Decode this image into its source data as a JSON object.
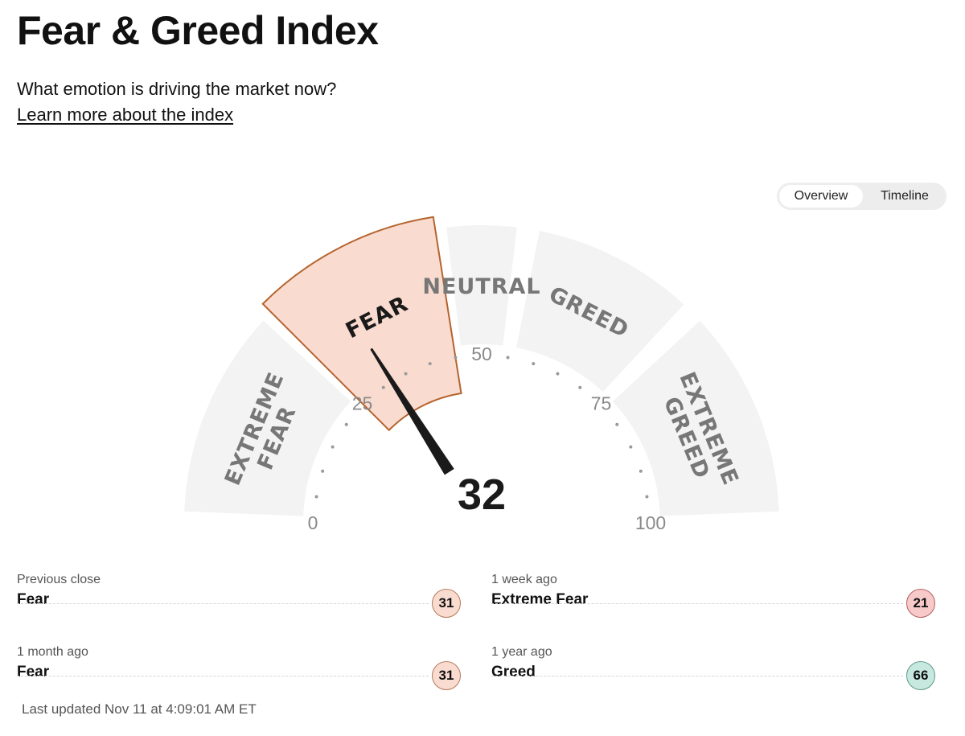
{
  "header": {
    "title": "Fear & Greed Index",
    "subtitle": "What emotion is driving the market now?",
    "learn_more": "Learn more about the index"
  },
  "view_toggle": {
    "overview": "Overview",
    "timeline": "Timeline",
    "selected": "overview"
  },
  "gauge": {
    "score": 32,
    "score_label": "32",
    "segments": [
      {
        "label": "EXTREME FEAR",
        "lines": [
          "EXTREME",
          "FEAR"
        ],
        "from": 0,
        "to": 25
      },
      {
        "label": "FEAR",
        "lines": [
          "FEAR"
        ],
        "from": 25,
        "to": 45
      },
      {
        "label": "NEUTRAL",
        "lines": [
          "NEUTRAL"
        ],
        "from": 45,
        "to": 55
      },
      {
        "label": "GREED",
        "lines": [
          "GREED"
        ],
        "from": 55,
        "to": 75
      },
      {
        "label": "EXTREME GREED",
        "lines": [
          "EXTREME",
          "GREED"
        ],
        "from": 75,
        "to": 100
      }
    ],
    "active_segment": "FEAR",
    "scale_labels": [
      "0",
      "25",
      "50",
      "75",
      "100"
    ],
    "colors": {
      "segment": "#f3f3f3",
      "active_fill": "#fadbd0",
      "active_stroke": "#b4642e",
      "label": "#777777",
      "active_label": "#1a1a1a",
      "needle": "#1a1a1a",
      "dot": "#9a9a9a"
    }
  },
  "stats": [
    {
      "label": "Previous close",
      "rating": "Fear",
      "value": "31",
      "color": "#fadbd0",
      "border": "#b47a5a"
    },
    {
      "label": "1 week ago",
      "rating": "Extreme Fear",
      "value": "21",
      "color": "#f8c9c9",
      "border": "#b25f5f"
    },
    {
      "label": "1 month ago",
      "rating": "Fear",
      "value": "31",
      "color": "#fadbd0",
      "border": "#b47a5a"
    },
    {
      "label": "1 year ago",
      "rating": "Greed",
      "value": "66",
      "color": "#c7e8df",
      "border": "#5e9a89"
    }
  ],
  "last_updated": "Last updated Nov 11 at 4:09:01 AM ET"
}
